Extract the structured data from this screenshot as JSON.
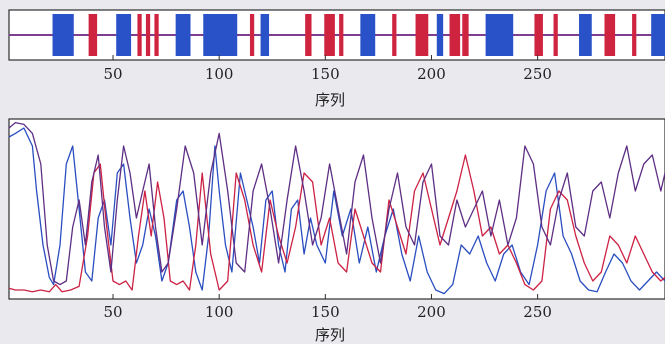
{
  "chart_data": [
    {
      "type": "bar",
      "xlabel": "序列",
      "xlim": [
        1,
        310
      ],
      "xticks": [
        50,
        100,
        150,
        200,
        250
      ],
      "baseline_color": "#7e3f90",
      "segment_types": {
        "H": "#2a52c8",
        "E": "#cf2440",
        "C": "#7e3f90"
      },
      "segments": [
        {
          "type": "H",
          "start": 22,
          "end": 31
        },
        {
          "type": "E",
          "start": 39,
          "end": 42
        },
        {
          "type": "H",
          "start": 52,
          "end": 58
        },
        {
          "type": "E",
          "start": 62,
          "end": 63
        },
        {
          "type": "E",
          "start": 66,
          "end": 67
        },
        {
          "type": "E",
          "start": 70,
          "end": 71
        },
        {
          "type": "H",
          "start": 80,
          "end": 86
        },
        {
          "type": "H",
          "start": 93,
          "end": 108
        },
        {
          "type": "E",
          "start": 115,
          "end": 116
        },
        {
          "type": "H",
          "start": 120,
          "end": 123
        },
        {
          "type": "E",
          "start": 141,
          "end": 143
        },
        {
          "type": "E",
          "start": 150,
          "end": 154
        },
        {
          "type": "E",
          "start": 157,
          "end": 158
        },
        {
          "type": "H",
          "start": 167,
          "end": 173
        },
        {
          "type": "E",
          "start": 182,
          "end": 183
        },
        {
          "type": "E",
          "start": 193,
          "end": 198
        },
        {
          "type": "H",
          "start": 203,
          "end": 205
        },
        {
          "type": "E",
          "start": 209,
          "end": 213
        },
        {
          "type": "E",
          "start": 215,
          "end": 217
        },
        {
          "type": "H",
          "start": 226,
          "end": 238
        },
        {
          "type": "E",
          "start": 249,
          "end": 252
        },
        {
          "type": "E",
          "start": 258,
          "end": 259
        },
        {
          "type": "H",
          "start": 270,
          "end": 275
        },
        {
          "type": "E",
          "start": 282,
          "end": 286
        },
        {
          "type": "E",
          "start": 295,
          "end": 296
        },
        {
          "type": "H",
          "start": 304,
          "end": 310
        }
      ]
    },
    {
      "type": "line",
      "xlabel": "序列",
      "xlim": [
        1,
        310
      ],
      "ylim": [
        0,
        1
      ],
      "xticks": [
        50,
        100,
        150,
        200,
        250
      ],
      "series": [
        {
          "color": "#2a4ec0",
          "x": [
            1,
            4,
            8,
            12,
            14,
            17,
            20,
            22,
            25,
            28,
            31,
            34,
            37,
            40,
            43,
            46,
            49,
            52,
            55,
            58,
            61,
            64,
            67,
            70,
            73,
            76,
            80,
            83,
            86,
            89,
            92,
            95,
            98,
            100,
            103,
            106,
            110,
            113,
            116,
            119,
            122,
            125,
            128,
            131,
            134,
            137,
            140,
            143,
            146,
            150,
            154,
            158,
            162,
            166,
            170,
            174,
            178,
            182,
            186,
            190,
            194,
            198,
            202,
            206,
            210,
            214,
            218,
            222,
            226,
            230,
            234,
            238,
            242,
            246,
            250,
            254,
            258,
            262,
            266,
            270,
            274,
            278,
            282,
            286,
            290,
            294,
            298,
            302,
            306,
            310
          ],
          "y": [
            0.9,
            0.92,
            0.95,
            0.85,
            0.6,
            0.3,
            0.12,
            0.08,
            0.3,
            0.75,
            0.85,
            0.5,
            0.15,
            0.1,
            0.45,
            0.55,
            0.3,
            0.7,
            0.75,
            0.45,
            0.2,
            0.3,
            0.5,
            0.35,
            0.1,
            0.2,
            0.55,
            0.6,
            0.4,
            0.15,
            0.05,
            0.35,
            0.85,
            0.6,
            0.3,
            0.15,
            0.7,
            0.55,
            0.4,
            0.2,
            0.55,
            0.6,
            0.3,
            0.15,
            0.5,
            0.55,
            0.25,
            0.45,
            0.3,
            0.2,
            0.6,
            0.35,
            0.5,
            0.2,
            0.4,
            0.15,
            0.35,
            0.5,
            0.25,
            0.1,
            0.35,
            0.15,
            0.05,
            0.03,
            0.08,
            0.3,
            0.25,
            0.35,
            0.2,
            0.1,
            0.25,
            0.3,
            0.15,
            0.08,
            0.3,
            0.6,
            0.7,
            0.35,
            0.25,
            0.1,
            0.05,
            0.04,
            0.15,
            0.25,
            0.2,
            0.1,
            0.05,
            0.1,
            0.15,
            0.1
          ]
        },
        {
          "color": "#cc2244",
          "x": [
            1,
            4,
            8,
            12,
            16,
            20,
            23,
            26,
            30,
            34,
            38,
            41,
            44,
            47,
            50,
            53,
            56,
            59,
            62,
            65,
            68,
            71,
            74,
            77,
            80,
            83,
            86,
            89,
            92,
            96,
            100,
            104,
            108,
            112,
            116,
            120,
            124,
            128,
            132,
            136,
            140,
            144,
            148,
            152,
            156,
            160,
            164,
            168,
            172,
            176,
            180,
            184,
            188,
            192,
            196,
            200,
            204,
            208,
            212,
            216,
            220,
            224,
            228,
            232,
            236,
            240,
            244,
            248,
            252,
            256,
            260,
            264,
            268,
            272,
            276,
            280,
            284,
            288,
            292,
            296,
            300,
            304,
            308,
            310
          ],
          "y": [
            0.06,
            0.05,
            0.05,
            0.04,
            0.05,
            0.04,
            0.08,
            0.04,
            0.05,
            0.07,
            0.35,
            0.7,
            0.75,
            0.4,
            0.1,
            0.08,
            0.1,
            0.05,
            0.35,
            0.6,
            0.35,
            0.65,
            0.45,
            0.1,
            0.08,
            0.1,
            0.05,
            0.3,
            0.7,
            0.25,
            0.05,
            0.1,
            0.7,
            0.55,
            0.3,
            0.15,
            0.55,
            0.35,
            0.2,
            0.4,
            0.7,
            0.65,
            0.3,
            0.45,
            0.2,
            0.15,
            0.5,
            0.35,
            0.2,
            0.15,
            0.55,
            0.4,
            0.25,
            0.6,
            0.7,
            0.5,
            0.3,
            0.45,
            0.6,
            0.8,
            0.6,
            0.35,
            0.4,
            0.25,
            0.3,
            0.2,
            0.08,
            0.05,
            0.1,
            0.5,
            0.6,
            0.55,
            0.35,
            0.2,
            0.1,
            0.15,
            0.35,
            0.3,
            0.2,
            0.35,
            0.25,
            0.15,
            0.1,
            0.12
          ]
        },
        {
          "color": "#5e2f84",
          "x": [
            1,
            4,
            8,
            12,
            16,
            19,
            22,
            25,
            28,
            31,
            34,
            37,
            40,
            43,
            46,
            49,
            52,
            55,
            58,
            61,
            64,
            67,
            70,
            73,
            76,
            80,
            84,
            88,
            92,
            96,
            100,
            104,
            108,
            112,
            116,
            120,
            124,
            128,
            132,
            136,
            140,
            144,
            148,
            152,
            156,
            160,
            164,
            168,
            172,
            176,
            180,
            184,
            188,
            192,
            196,
            200,
            204,
            208,
            212,
            216,
            220,
            224,
            228,
            232,
            236,
            240,
            244,
            248,
            252,
            256,
            260,
            264,
            268,
            272,
            276,
            280,
            284,
            288,
            292,
            296,
            300,
            304,
            308,
            310
          ],
          "y": [
            0.95,
            0.98,
            0.97,
            0.92,
            0.75,
            0.3,
            0.1,
            0.08,
            0.1,
            0.4,
            0.55,
            0.3,
            0.65,
            0.8,
            0.4,
            0.15,
            0.55,
            0.85,
            0.7,
            0.45,
            0.6,
            0.75,
            0.4,
            0.15,
            0.2,
            0.5,
            0.85,
            0.7,
            0.3,
            0.7,
            0.92,
            0.6,
            0.2,
            0.15,
            0.6,
            0.75,
            0.5,
            0.2,
            0.55,
            0.85,
            0.6,
            0.3,
            0.45,
            0.75,
            0.5,
            0.25,
            0.65,
            0.8,
            0.45,
            0.2,
            0.5,
            0.7,
            0.4,
            0.3,
            0.65,
            0.75,
            0.35,
            0.3,
            0.55,
            0.4,
            0.5,
            0.6,
            0.35,
            0.55,
            0.3,
            0.45,
            0.85,
            0.75,
            0.4,
            0.3,
            0.55,
            0.7,
            0.4,
            0.35,
            0.6,
            0.65,
            0.45,
            0.7,
            0.85,
            0.6,
            0.75,
            0.8,
            0.6,
            0.7
          ]
        }
      ]
    }
  ]
}
